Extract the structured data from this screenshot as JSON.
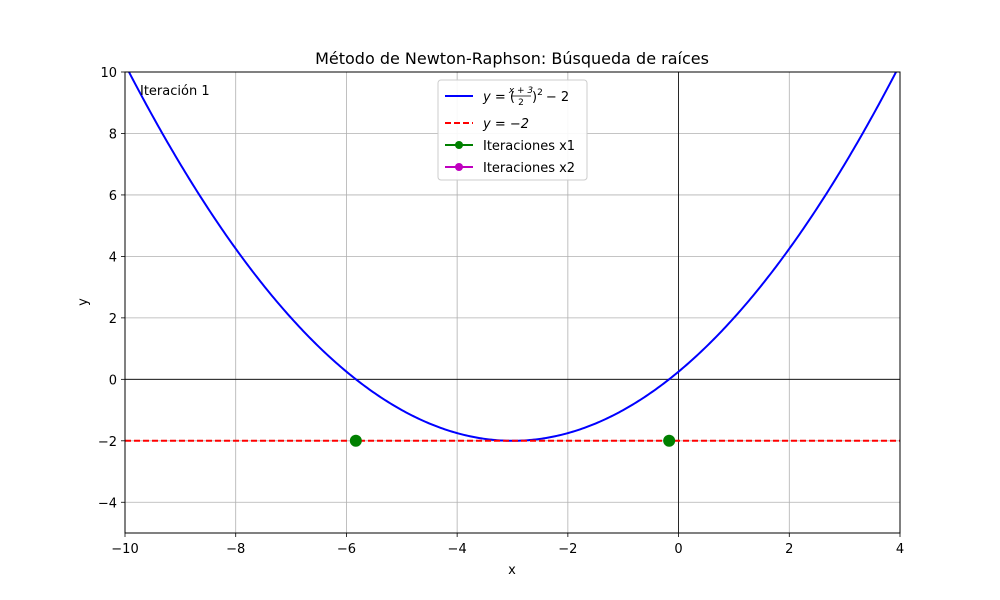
{
  "chart_data": {
    "type": "line",
    "title": "Método de Newton-Raphson: Búsqueda de raíces",
    "xlabel": "x",
    "ylabel": "y",
    "xlim": [
      -10,
      4
    ],
    "ylim": [
      -5,
      10
    ],
    "xticks": [
      -10,
      -8,
      -6,
      -4,
      -2,
      0,
      2,
      4
    ],
    "yticks": [
      -4,
      -2,
      0,
      2,
      4,
      6,
      8,
      10
    ],
    "xtick_labels": [
      "−10",
      "−8",
      "−6",
      "−4",
      "−2",
      "0",
      "2",
      "4"
    ],
    "ytick_labels": [
      "−4",
      "−2",
      "0",
      "2",
      "4",
      "6",
      "8",
      "10"
    ],
    "grid": true,
    "legend_position": "top-center",
    "annotation": "Iteración 1",
    "series": [
      {
        "name": "y = ((x+3)/2)² − 2",
        "kind": "curve",
        "function": "((x+3)/2)^2 - 2",
        "x_range": [
          -10,
          4
        ],
        "color": "#0000ff",
        "style": "solid"
      },
      {
        "name": "y = −2",
        "kind": "hline",
        "y": -2,
        "color": "#ff0000",
        "style": "dashed"
      },
      {
        "name": "Iteraciones x1",
        "kind": "points",
        "color": "#008000",
        "points": [
          [
            -5.83,
            -2
          ]
        ]
      },
      {
        "name": "Iteraciones x2",
        "kind": "points",
        "color": "#bf00bf",
        "points": [
          [
            -0.17,
            -2
          ]
        ]
      }
    ],
    "markers_drawn_color": "#008000"
  },
  "legend": {
    "entry1_prefix": "y = ",
    "entry1_suffix": "− 2",
    "entry1_frac_num": "x + 3",
    "entry1_frac_den": "2",
    "entry2": "y = −2",
    "entry3": "Iteraciones x1",
    "entry4": "Iteraciones x2"
  }
}
